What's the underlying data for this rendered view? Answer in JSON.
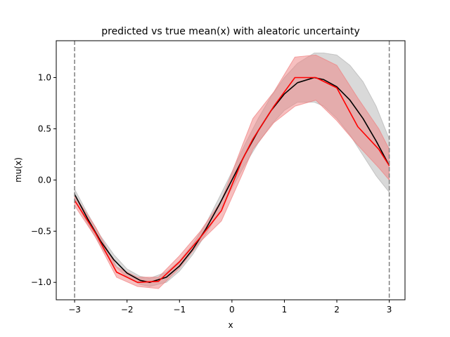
{
  "chart_data": {
    "type": "line",
    "title": "predicted vs true mean(x) with aleatoric uncertainty",
    "xlabel": "x",
    "ylabel": "mu(x)",
    "xlim": [
      -3.35,
      3.3
    ],
    "ylim": [
      -1.17,
      1.36
    ],
    "xticks": [
      -3,
      -2,
      -1,
      0,
      1,
      2,
      3
    ],
    "yticks": [
      -1.0,
      -0.5,
      0.0,
      0.5,
      1.0
    ],
    "xtick_labels": [
      "−3",
      "−2",
      "−1",
      "0",
      "1",
      "2",
      "3"
    ],
    "ytick_labels": [
      "−1.0",
      "−0.5",
      "0.0",
      "0.5",
      "1.0"
    ],
    "vlines": [
      -3,
      3
    ],
    "grid": false,
    "colors": {
      "predicted": "#ff0000",
      "predicted_band": "#f08080",
      "true": "#000000",
      "true_band": "#a0a0a0",
      "vline": "#808080"
    },
    "series": [
      {
        "role": "predicted",
        "x": [
          -3.0,
          -2.6,
          -2.2,
          -1.8,
          -1.4,
          -1.0,
          -0.6,
          -0.2,
          0.2,
          0.4,
          0.8,
          1.2,
          1.6,
          2.0,
          2.4,
          2.8,
          3.0
        ],
        "values": [
          -0.2,
          -0.52,
          -0.9,
          -1.0,
          -0.99,
          -0.8,
          -0.56,
          -0.3,
          0.2,
          0.4,
          0.72,
          1.0,
          1.0,
          0.9,
          0.52,
          0.3,
          0.14
        ],
        "lower": [
          -0.25,
          -0.56,
          -0.95,
          -1.04,
          -1.06,
          -0.86,
          -0.6,
          -0.4,
          0.06,
          0.3,
          0.56,
          0.72,
          0.78,
          0.58,
          0.34,
          0.12,
          0.0
        ],
        "upper": [
          -0.15,
          -0.46,
          -0.85,
          -0.95,
          -0.95,
          -0.74,
          -0.5,
          -0.2,
          0.34,
          0.6,
          0.86,
          1.2,
          1.22,
          1.12,
          0.8,
          0.5,
          0.3
        ]
      },
      {
        "role": "true",
        "x": [
          -3.0,
          -2.75,
          -2.5,
          -2.25,
          -2.0,
          -1.75,
          -1.57,
          -1.25,
          -1.0,
          -0.75,
          -0.5,
          -0.25,
          0.0,
          0.25,
          0.5,
          0.75,
          1.0,
          1.25,
          1.57,
          1.75,
          2.0,
          2.25,
          2.5,
          2.75,
          3.0
        ],
        "values": [
          -0.14,
          -0.38,
          -0.6,
          -0.78,
          -0.91,
          -0.98,
          -1.0,
          -0.95,
          -0.84,
          -0.68,
          -0.48,
          -0.25,
          0.0,
          0.25,
          0.48,
          0.68,
          0.84,
          0.95,
          1.0,
          0.98,
          0.91,
          0.78,
          0.6,
          0.38,
          0.14
        ],
        "lower": [
          -0.19,
          -0.43,
          -0.65,
          -0.83,
          -0.95,
          -1.02,
          -1.04,
          -1.0,
          -0.89,
          -0.73,
          -0.53,
          -0.32,
          -0.08,
          0.15,
          0.36,
          0.54,
          0.68,
          0.76,
          0.76,
          0.72,
          0.6,
          0.44,
          0.24,
          0.04,
          -0.12
        ],
        "upper": [
          -0.09,
          -0.33,
          -0.55,
          -0.73,
          -0.87,
          -0.94,
          -0.96,
          -0.9,
          -0.79,
          -0.63,
          -0.43,
          -0.18,
          0.08,
          0.35,
          0.6,
          0.82,
          1.0,
          1.14,
          1.24,
          1.24,
          1.22,
          1.12,
          0.96,
          0.72,
          0.4
        ]
      }
    ]
  }
}
